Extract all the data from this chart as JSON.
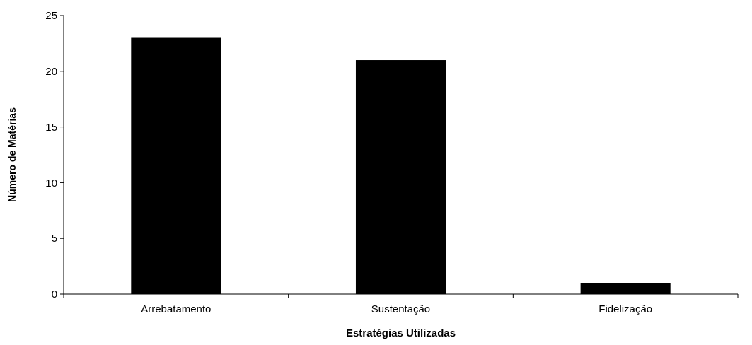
{
  "chart_data": {
    "type": "bar",
    "xlabel": "Estratégias Utilizadas",
    "ylabel": "Número de Matérias",
    "categories": [
      "Arrebatamento",
      "Sustentação",
      "Fidelização"
    ],
    "values": [
      23,
      21,
      1
    ],
    "color": "#000000",
    "ylim": [
      0,
      25
    ],
    "yticks": [
      0,
      5,
      10,
      15,
      20,
      25
    ],
    "grid": false
  }
}
